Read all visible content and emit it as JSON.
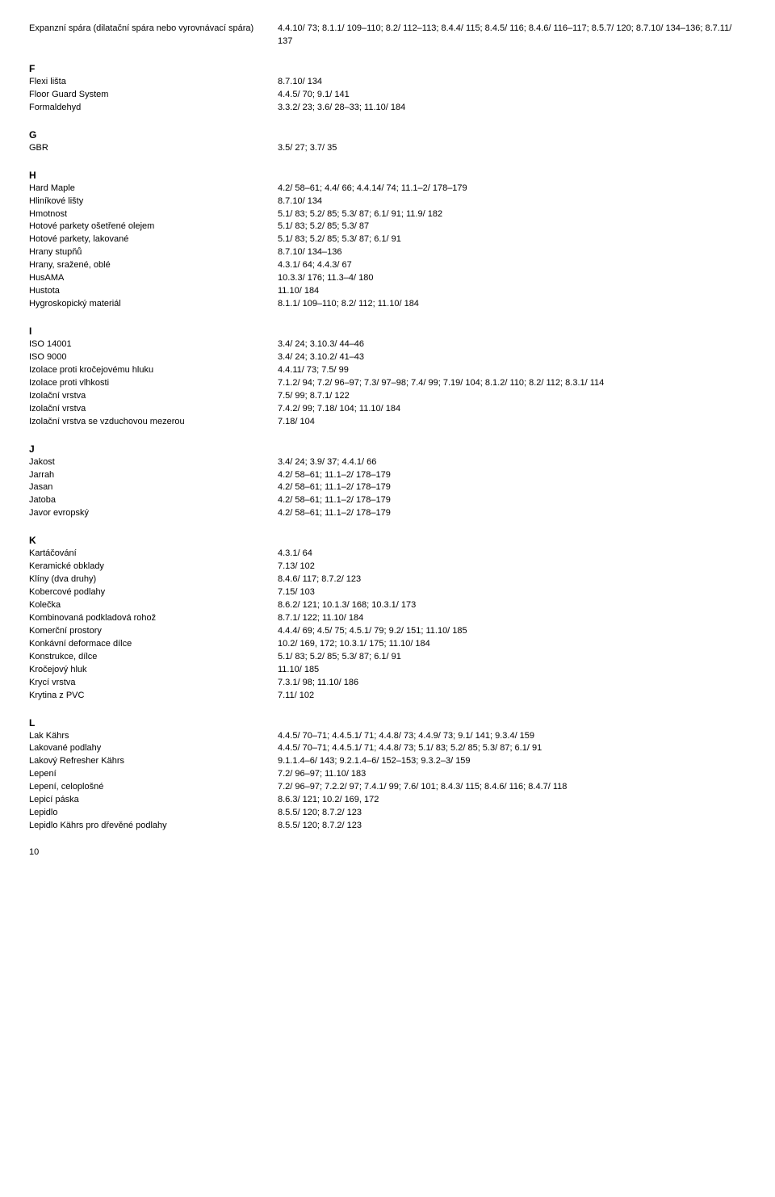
{
  "top_entry": {
    "term": "Expanzní spára (dilatační spára nebo vyrovnávací spára)",
    "refs": "4.4.10/ 73; 8.1.1/ 109–110; 8.2/ 112–113; 8.4.4/ 115; 8.4.5/ 116; 8.4.6/ 116–117; 8.5.7/ 120; 8.7.10/ 134–136; 8.7.11/ 137"
  },
  "sections": [
    {
      "letter": "F",
      "entries": [
        {
          "term": "Flexi lišta",
          "refs": "8.7.10/ 134"
        },
        {
          "term": "Floor Guard System",
          "refs": "4.4.5/ 70; 9.1/ 141"
        },
        {
          "term": "Formaldehyd",
          "refs": "3.3.2/ 23; 3.6/ 28–33; 11.10/ 184"
        }
      ]
    },
    {
      "letter": "G",
      "entries": [
        {
          "term": "GBR",
          "refs": "3.5/ 27; 3.7/ 35"
        }
      ]
    },
    {
      "letter": "H",
      "entries": [
        {
          "term": "Hard Maple",
          "refs": "4.2/ 58–61; 4.4/ 66; 4.4.14/ 74; 11.1–2/ 178–179"
        },
        {
          "term": "Hliníkové lišty",
          "refs": "8.7.10/ 134"
        },
        {
          "term": "Hmotnost",
          "refs": "5.1/ 83; 5.2/ 85; 5.3/ 87; 6.1/ 91; 11.9/ 182"
        },
        {
          "term": "Hotové parkety ošetřené olejem",
          "refs": "5.1/ 83; 5.2/ 85; 5.3/ 87"
        },
        {
          "term": "Hotové parkety, lakované",
          "refs": "5.1/ 83; 5.2/ 85; 5.3/ 87; 6.1/ 91"
        },
        {
          "term": "Hrany stupňů",
          "refs": "8.7.10/ 134–136"
        },
        {
          "term": "Hrany, sražené, oblé",
          "refs": "4.3.1/ 64; 4.4.3/ 67"
        },
        {
          "term": "HusAMA",
          "refs": "10.3.3/ 176; 11.3–4/ 180"
        },
        {
          "term": "Hustota",
          "refs": "11.10/ 184"
        },
        {
          "term": "Hygroskopický materiál",
          "refs": "8.1.1/ 109–110; 8.2/ 112; 11.10/ 184"
        }
      ]
    },
    {
      "letter": "I",
      "entries": [
        {
          "term": "ISO 14001",
          "refs": "3.4/ 24; 3.10.3/ 44–46"
        },
        {
          "term": "ISO 9000",
          "refs": "3.4/ 24; 3.10.2/ 41–43"
        },
        {
          "term": "Izolace proti kročejovému hluku",
          "refs": "4.4.11/ 73; 7.5/ 99"
        },
        {
          "term": "Izolace proti vlhkosti",
          "refs": "7.1.2/ 94; 7.2/ 96–97; 7.3/ 97–98; 7.4/ 99; 7.19/ 104; 8.1.2/ 110; 8.2/ 112; 8.3.1/ 114"
        },
        {
          "term": "Izolační vrstva",
          "refs": "7.5/ 99; 8.7.1/ 122"
        },
        {
          "term": "Izolační vrstva",
          "refs": "7.4.2/ 99; 7.18/ 104; 11.10/ 184"
        },
        {
          "term": "Izolační vrstva se vzduchovou mezerou",
          "refs": "7.18/ 104"
        }
      ]
    },
    {
      "letter": "J",
      "entries": [
        {
          "term": "Jakost",
          "refs": "3.4/ 24; 3.9/ 37; 4.4.1/ 66"
        },
        {
          "term": "Jarrah",
          "refs": "4.2/ 58–61; 11.1–2/ 178–179"
        },
        {
          "term": "Jasan",
          "refs": "4.2/ 58–61; 11.1–2/ 178–179"
        },
        {
          "term": "Jatoba",
          "refs": "4.2/ 58–61; 11.1–2/ 178–179"
        },
        {
          "term": "Javor evropský",
          "refs": "4.2/ 58–61; 11.1–2/ 178–179"
        }
      ]
    },
    {
      "letter": "K",
      "entries": [
        {
          "term": "Kartáčování",
          "refs": "4.3.1/ 64"
        },
        {
          "term": "Keramické obklady",
          "refs": "7.13/ 102"
        },
        {
          "term": "Klíny (dva druhy)",
          "refs": "8.4.6/ 117; 8.7.2/ 123"
        },
        {
          "term": "Kobercové podlahy",
          "refs": "7.15/ 103"
        },
        {
          "term": "Kolečka",
          "refs": "8.6.2/ 121; 10.1.3/ 168; 10.3.1/ 173"
        },
        {
          "term": "Kombinovaná podkladová rohož",
          "refs": "8.7.1/ 122; 11.10/ 184"
        },
        {
          "term": "Komerční prostory",
          "refs": "4.4.4/ 69; 4.5/ 75; 4.5.1/ 79; 9.2/ 151; 11.10/ 185"
        },
        {
          "term": "Konkávní deformace dílce",
          "refs": "10.2/ 169, 172; 10.3.1/ 175; 11.10/ 184"
        },
        {
          "term": "Konstrukce, dílce",
          "refs": "5.1/ 83; 5.2/ 85; 5.3/ 87; 6.1/ 91"
        },
        {
          "term": "Kročejový hluk",
          "refs": "11.10/ 185"
        },
        {
          "term": "Krycí vrstva",
          "refs": "7.3.1/ 98; 11.10/ 186"
        },
        {
          "term": "Krytina z PVC",
          "refs": "7.11/ 102"
        }
      ]
    },
    {
      "letter": "L",
      "entries": [
        {
          "term": "Lak Kährs",
          "refs": "4.4.5/ 70–71; 4.4.5.1/ 71; 4.4.8/ 73; 4.4.9/ 73; 9.1/ 141; 9.3.4/ 159"
        },
        {
          "term": "Lakované podlahy",
          "refs": "4.4.5/ 70–71; 4.4.5.1/ 71; 4.4.8/ 73; 5.1/ 83; 5.2/ 85; 5.3/ 87; 6.1/ 91"
        },
        {
          "term": "Lakový Refresher Kährs",
          "refs": "9.1.1.4–6/ 143; 9.2.1.4–6/ 152–153; 9.3.2–3/ 159"
        },
        {
          "term": "Lepení",
          "refs": "7.2/ 96–97; 11.10/ 183"
        },
        {
          "term": "Lepení, celoplošné",
          "refs": "7.2/ 96–97; 7.2.2/ 97; 7.4.1/ 99; 7.6/ 101; 8.4.3/ 115; 8.4.6/ 116; 8.4.7/ 118"
        },
        {
          "term": "Lepicí páska",
          "refs": "8.6.3/ 121; 10.2/ 169, 172"
        },
        {
          "term": "Lepidlo",
          "refs": "8.5.5/ 120; 8.7.2/ 123"
        },
        {
          "term": "Lepidlo Kährs  pro dřevěné podlahy",
          "refs": "8.5.5/ 120; 8.7.2/ 123"
        }
      ]
    }
  ],
  "page_number": "10"
}
